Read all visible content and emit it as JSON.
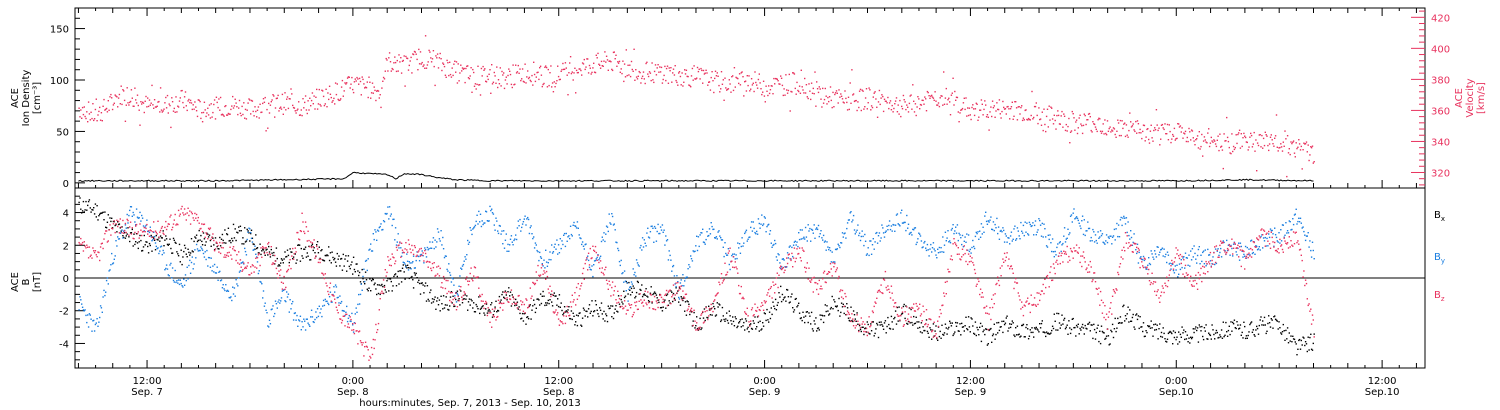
{
  "xlabel": "hours:minutes, Sep.  7, 2013 - Sep. 10, 2013",
  "x_ticks": [
    {
      "t": 12,
      "l1": "12:00",
      "l2": "Sep. 7"
    },
    {
      "t": 24,
      "l1": "0:00",
      "l2": "Sep. 8"
    },
    {
      "t": 36,
      "l1": "12:00",
      "l2": "Sep. 8"
    },
    {
      "t": 48,
      "l1": "0:00",
      "l2": "Sep. 9"
    },
    {
      "t": 60,
      "l1": "12:00",
      "l2": "Sep. 9"
    },
    {
      "t": 72,
      "l1": "0:00",
      "l2": "Sep.10"
    },
    {
      "t": 84,
      "l1": "12:00",
      "l2": "Sep.10"
    }
  ],
  "colors": {
    "black": "#000000",
    "pink": "#e8325e",
    "blue": "#1a7ee0",
    "axis": "#000000"
  },
  "chart_data": [
    {
      "type": "scatter",
      "panel": "top",
      "ylabel": [
        "ACE",
        "Ion Density",
        "[cm⁻³]"
      ],
      "ylabel_right": [
        "ACE",
        "Velocity",
        "[km/s]"
      ],
      "xlim_hours": [
        7.8,
        86.5
      ],
      "ylim": [
        -5,
        170
      ],
      "y_ticks": [
        0,
        50,
        100,
        150
      ],
      "ylim_right": [
        310,
        426
      ],
      "y_ticks_right": [
        320,
        340,
        360,
        380,
        400,
        420
      ],
      "series": [
        {
          "name": "Velocity",
          "color": "#e8325e",
          "axis": "right",
          "x": [
            8,
            9,
            10,
            10.5,
            11,
            12,
            13,
            14,
            15,
            16,
            17,
            18,
            19,
            20,
            21,
            22,
            23,
            24,
            25,
            25.5,
            26,
            27,
            28,
            29,
            30,
            31,
            32,
            33,
            34,
            35,
            36,
            37,
            38,
            39,
            40,
            41,
            42,
            43,
            44,
            45,
            46,
            47,
            48,
            49,
            50,
            51,
            52,
            53,
            54,
            55,
            56,
            57,
            58,
            59,
            60,
            61,
            62,
            63,
            64,
            65,
            66,
            67,
            68,
            69,
            70,
            71,
            72,
            73,
            74,
            75,
            76,
            77,
            78,
            79,
            80
          ],
          "y": [
            362,
            357,
            366,
            371,
            370,
            363,
            364,
            367,
            361,
            362,
            364,
            361,
            364,
            365,
            363,
            368,
            372,
            377,
            375,
            372,
            392,
            389,
            395,
            391,
            385,
            382,
            383,
            381,
            385,
            382,
            383,
            388,
            390,
            392,
            388,
            384,
            385,
            383,
            382,
            379,
            378,
            380,
            376,
            377,
            378,
            372,
            368,
            366,
            368,
            366,
            363,
            365,
            369,
            367,
            360,
            361,
            361,
            360,
            358,
            355,
            352,
            353,
            351,
            348,
            346,
            344,
            348,
            341,
            342,
            339,
            342,
            340,
            341,
            336,
            332
          ]
        },
        {
          "name": "Ion Density",
          "color": "#000000",
          "axis": "left",
          "x": [
            8,
            12,
            16,
            20,
            23.5,
            24,
            26,
            26.5,
            27,
            28,
            29,
            30,
            32,
            36,
            40,
            44,
            48,
            52,
            56,
            60,
            64,
            68,
            72,
            76,
            80
          ],
          "y": [
            2,
            2,
            2,
            3,
            4,
            10,
            8,
            4,
            9,
            8,
            5,
            3,
            2,
            2,
            2,
            2,
            2,
            2,
            2,
            2,
            2,
            2,
            2,
            3,
            2
          ]
        }
      ]
    },
    {
      "type": "line",
      "panel": "bottom",
      "ylabel": [
        "ACE",
        "B",
        "[nT]"
      ],
      "xlim_hours": [
        7.8,
        86.5
      ],
      "ylim": [
        -5.5,
        5.5
      ],
      "y_ticks": [
        -4,
        -2,
        0,
        2,
        4
      ],
      "zero_line": true,
      "legend": [
        {
          "label": "B",
          "sub": "x",
          "color": "#000000"
        },
        {
          "label": "B",
          "sub": "y",
          "color": "#1a7ee0"
        },
        {
          "label": "B",
          "sub": "z",
          "color": "#e8325e"
        }
      ],
      "series": [
        {
          "name": "Bx",
          "color": "#000000",
          "x": [
            8,
            9,
            10,
            11,
            12,
            13,
            14,
            15,
            16,
            17,
            18,
            19,
            20,
            21,
            22,
            23,
            24,
            25,
            26,
            27,
            28,
            29,
            30,
            31,
            32,
            33,
            34,
            35,
            36,
            37,
            38,
            39,
            40,
            41,
            42,
            43,
            44,
            45,
            46,
            47,
            48,
            49,
            50,
            51,
            52,
            53,
            54,
            55,
            56,
            57,
            58,
            59,
            60,
            61,
            62,
            63,
            64,
            65,
            66,
            67,
            68,
            69,
            70,
            71,
            72,
            73,
            74,
            75,
            76,
            77,
            78,
            79,
            80
          ],
          "y": [
            4.5,
            4.2,
            3.2,
            2.6,
            2.0,
            2.5,
            1.4,
            2.5,
            2.2,
            2.8,
            2.5,
            1.5,
            1.2,
            1.6,
            1.8,
            1.2,
            0.8,
            -0.5,
            -0.5,
            0.5,
            -0.6,
            -1.6,
            -1.2,
            -1.5,
            -2.0,
            -1.0,
            -2.4,
            -1.2,
            -1.5,
            -2.6,
            -1.8,
            -2.2,
            -0.5,
            -0.8,
            -1.5,
            -1.0,
            -2.8,
            -1.8,
            -2.6,
            -3.0,
            -2.5,
            -0.8,
            -2.0,
            -2.8,
            -1.5,
            -2.2,
            -3.2,
            -3.0,
            -2.0,
            -2.8,
            -3.4,
            -3.0,
            -2.8,
            -3.6,
            -2.8,
            -3.2,
            -3.2,
            -2.6,
            -3.0,
            -3.2,
            -3.6,
            -2.0,
            -3.0,
            -3.2,
            -3.5,
            -3.4,
            -3.3,
            -3.0,
            -3.2,
            -2.8,
            -2.8,
            -4.2,
            -3.8
          ]
        },
        {
          "name": "By",
          "color": "#1a7ee0",
          "x": [
            8,
            9,
            10,
            11,
            12,
            13,
            14,
            15,
            16,
            17,
            18,
            19,
            20,
            21,
            22,
            23,
            24,
            25,
            26,
            27,
            28,
            29,
            30,
            31,
            32,
            33,
            34,
            35,
            36,
            37,
            38,
            39,
            40,
            41,
            42,
            43,
            44,
            45,
            46,
            47,
            48,
            49,
            50,
            51,
            52,
            53,
            54,
            55,
            56,
            57,
            58,
            59,
            60,
            61,
            62,
            63,
            64,
            65,
            66,
            67,
            68,
            69,
            70,
            71,
            72,
            73,
            74,
            75,
            76,
            77,
            78,
            79,
            80
          ],
          "y": [
            -1.5,
            -3.2,
            1.5,
            4.0,
            3.2,
            1.0,
            -0.5,
            2.0,
            0.5,
            -1.0,
            3.0,
            -2.5,
            -1.0,
            -3.0,
            -2.0,
            -0.8,
            -2.8,
            2.0,
            4.2,
            1.0,
            1.2,
            2.8,
            -1.0,
            3.5,
            4.0,
            2.0,
            3.8,
            1.0,
            2.0,
            3.2,
            0.5,
            3.8,
            -1.0,
            2.5,
            3.0,
            -0.8,
            2.2,
            3.0,
            1.0,
            2.8,
            3.5,
            0.8,
            2.5,
            3.0,
            1.2,
            3.6,
            1.8,
            3.0,
            3.8,
            2.2,
            1.6,
            3.0,
            2.0,
            3.8,
            2.5,
            3.0,
            3.2,
            1.6,
            3.8,
            2.8,
            2.2,
            3.6,
            0.8,
            2.0,
            0.6,
            1.5,
            1.2,
            2.0,
            1.5,
            2.4,
            2.6,
            3.8,
            1.5
          ]
        },
        {
          "name": "Bz",
          "color": "#e8325e",
          "x": [
            8,
            9,
            10,
            11,
            12,
            13,
            14,
            15,
            16,
            17,
            18,
            19,
            20,
            21,
            22,
            23,
            24,
            25,
            26,
            27,
            28,
            29,
            30,
            31,
            32,
            33,
            34,
            35,
            36,
            37,
            38,
            39,
            40,
            41,
            42,
            43,
            44,
            45,
            46,
            47,
            48,
            49,
            50,
            51,
            52,
            53,
            54,
            55,
            56,
            57,
            58,
            59,
            60,
            61,
            62,
            63,
            64,
            65,
            66,
            67,
            68,
            69,
            70,
            71,
            72,
            73,
            74,
            75,
            76,
            77,
            78,
            79,
            80
          ],
          "y": [
            2.0,
            1.2,
            3.4,
            3.0,
            2.8,
            3.2,
            4.0,
            3.6,
            2.0,
            1.5,
            0.5,
            2.0,
            -0.5,
            3.5,
            1.2,
            -1.8,
            -3.0,
            -5.0,
            1.0,
            2.0,
            1.5,
            0.2,
            -1.5,
            0.5,
            -2.5,
            -1.0,
            -1.8,
            1.0,
            -3.0,
            -1.0,
            2.0,
            -0.5,
            -2.0,
            -1.2,
            -1.5,
            -0.5,
            -2.8,
            -1.5,
            1.5,
            -2.5,
            -1.5,
            0.5,
            1.8,
            -0.8,
            0.8,
            -2.6,
            -3.0,
            0.0,
            -2.4,
            -1.8,
            -3.4,
            2.0,
            1.2,
            -2.6,
            1.6,
            -1.8,
            -1.2,
            1.0,
            1.8,
            0.5,
            -2.8,
            2.5,
            1.0,
            -1.2,
            1.5,
            -0.5,
            1.2,
            2.2,
            1.0,
            2.6,
            2.0,
            2.5,
            -3.2
          ]
        }
      ]
    }
  ]
}
